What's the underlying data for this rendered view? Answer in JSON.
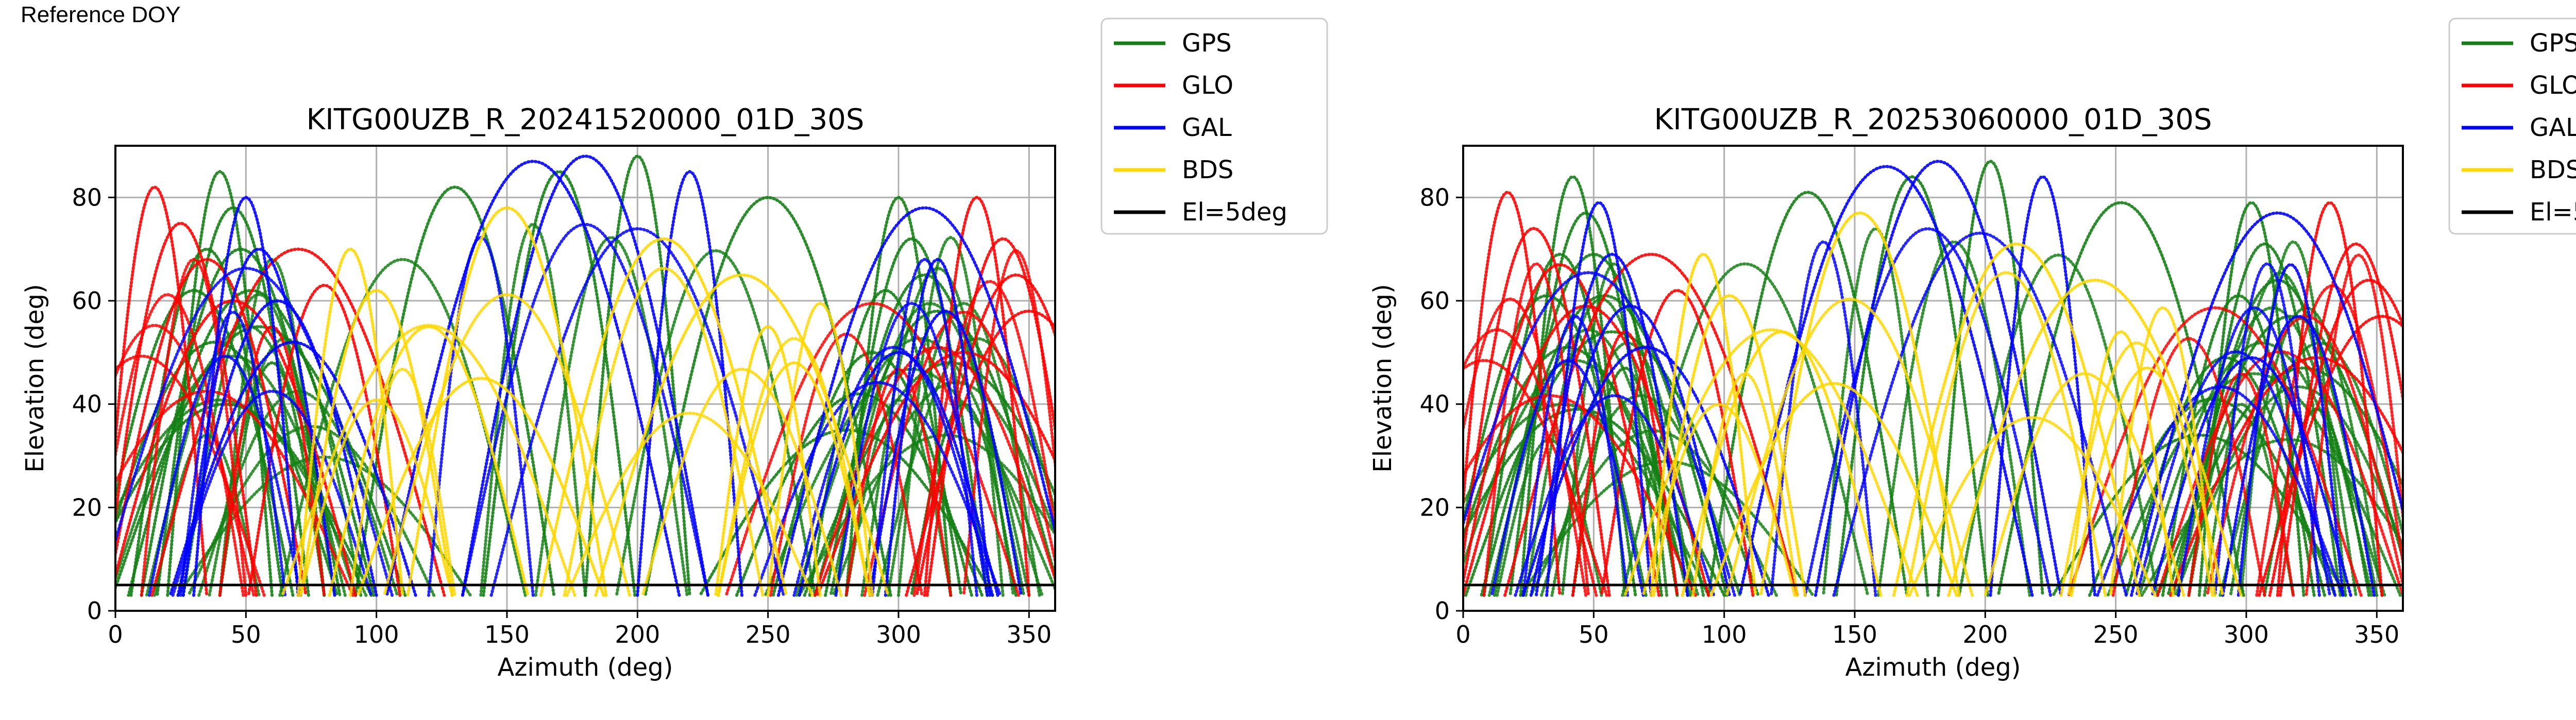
{
  "figure_label": "Reference DOY",
  "colors": {
    "GPS": "#138013",
    "GLO": "#ff0000",
    "GAL": "#0000ff",
    "BDS": "#ffd700",
    "mask": "#000000"
  },
  "legend": [
    "GPS",
    "GLO",
    "GAL",
    "BDS",
    "El=5deg"
  ],
  "chart_data": [
    {
      "type": "scatter",
      "title": "KITG00UZB_R_20241520000_01D_30S",
      "xlabel": "Azimuth (deg)",
      "ylabel": "Elevation (deg)",
      "xlim": [
        0,
        360
      ],
      "ylim": [
        0,
        90
      ],
      "xticks": [
        0,
        50,
        100,
        150,
        200,
        250,
        300,
        350
      ],
      "yticks": [
        0,
        20,
        40,
        60,
        80
      ],
      "grid": true,
      "legend_position": "outside-right",
      "elevation_mask_deg": 5,
      "series": [
        {
          "name": "GPS",
          "arcs": [
            [
              40,
              85
            ],
            [
              45,
              78
            ],
            [
              48,
              70
            ],
            [
              52,
              62
            ],
            [
              55,
              55
            ],
            [
              60,
              48
            ],
            [
              35,
              70
            ],
            [
              30,
              62
            ],
            [
              38,
              52
            ],
            [
              42,
              40
            ],
            [
              300,
              80
            ],
            [
              305,
              72
            ],
            [
              310,
              65
            ],
            [
              315,
              58
            ],
            [
              320,
              48
            ],
            [
              325,
              40
            ],
            [
              295,
              62
            ],
            [
              290,
              50
            ],
            [
              285,
              42
            ],
            [
              280,
              35
            ],
            [
              200,
              88
            ],
            [
              170,
              85
            ],
            [
              130,
              82
            ],
            [
              250,
              80
            ]
          ]
        },
        {
          "name": "GLO",
          "arcs": [
            [
              15,
              82
            ],
            [
              25,
              75
            ],
            [
              35,
              68
            ],
            [
              45,
              60
            ],
            [
              70,
              70
            ],
            [
              330,
              80
            ],
            [
              340,
              72
            ],
            [
              345,
              65
            ],
            [
              350,
              58
            ],
            [
              325,
              50
            ],
            [
              60,
              55
            ],
            [
              80,
              63
            ]
          ]
        },
        {
          "name": "GAL",
          "arcs": [
            [
              50,
              80
            ],
            [
              55,
              70
            ],
            [
              62,
              60
            ],
            [
              68,
              52
            ],
            [
              310,
              78
            ],
            [
              315,
              68
            ],
            [
              318,
              58
            ],
            [
              300,
              50
            ],
            [
              180,
              88
            ],
            [
              160,
              87
            ],
            [
              220,
              85
            ]
          ]
        },
        {
          "name": "BDS",
          "arcs": [
            [
              90,
              70
            ],
            [
              100,
              62
            ],
            [
              120,
              55
            ],
            [
              140,
              45
            ],
            [
              240,
              65
            ],
            [
              250,
              55
            ],
            [
              260,
              48
            ],
            [
              150,
              78
            ],
            [
              210,
              72
            ]
          ]
        }
      ]
    },
    {
      "type": "scatter",
      "title": "KITG00UZB_R_20253060000_01D_30S",
      "xlabel": "Azimuth (deg)",
      "ylabel": "Elevation (deg)",
      "xlim": [
        0,
        360
      ],
      "ylim": [
        0,
        90
      ],
      "xticks": [
        0,
        50,
        100,
        150,
        200,
        250,
        300,
        350
      ],
      "yticks": [
        0,
        20,
        40,
        60,
        80
      ],
      "grid": true,
      "legend_position": "outside-right",
      "elevation_mask_deg": 5,
      "series": [
        {
          "name": "GPS",
          "arcs": [
            [
              42,
              84
            ],
            [
              47,
              77
            ],
            [
              50,
              69
            ],
            [
              54,
              61
            ],
            [
              57,
              54
            ],
            [
              62,
              47
            ],
            [
              37,
              69
            ],
            [
              32,
              61
            ],
            [
              40,
              51
            ],
            [
              44,
              39
            ],
            [
              302,
              79
            ],
            [
              307,
              71
            ],
            [
              312,
              64
            ],
            [
              317,
              57
            ],
            [
              322,
              47
            ],
            [
              327,
              39
            ],
            [
              297,
              61
            ],
            [
              292,
              49
            ],
            [
              287,
              41
            ],
            [
              282,
              34
            ],
            [
              202,
              87
            ],
            [
              172,
              84
            ],
            [
              132,
              81
            ],
            [
              252,
              79
            ]
          ]
        },
        {
          "name": "GLO",
          "arcs": [
            [
              17,
              81
            ],
            [
              27,
              74
            ],
            [
              37,
              67
            ],
            [
              47,
              59
            ],
            [
              72,
              69
            ],
            [
              332,
              79
            ],
            [
              342,
              71
            ],
            [
              347,
              64
            ],
            [
              352,
              57
            ],
            [
              327,
              49
            ],
            [
              62,
              54
            ],
            [
              82,
              62
            ]
          ]
        },
        {
          "name": "GAL",
          "arcs": [
            [
              52,
              79
            ],
            [
              57,
              69
            ],
            [
              64,
              59
            ],
            [
              70,
              51
            ],
            [
              312,
              77
            ],
            [
              317,
              67
            ],
            [
              320,
              57
            ],
            [
              302,
              49
            ],
            [
              182,
              87
            ],
            [
              162,
              86
            ],
            [
              222,
              84
            ]
          ]
        },
        {
          "name": "BDS",
          "arcs": [
            [
              92,
              69
            ],
            [
              102,
              61
            ],
            [
              122,
              54
            ],
            [
              142,
              44
            ],
            [
              242,
              64
            ],
            [
              252,
              54
            ],
            [
              262,
              47
            ],
            [
              152,
              77
            ],
            [
              212,
              71
            ]
          ]
        }
      ]
    }
  ]
}
